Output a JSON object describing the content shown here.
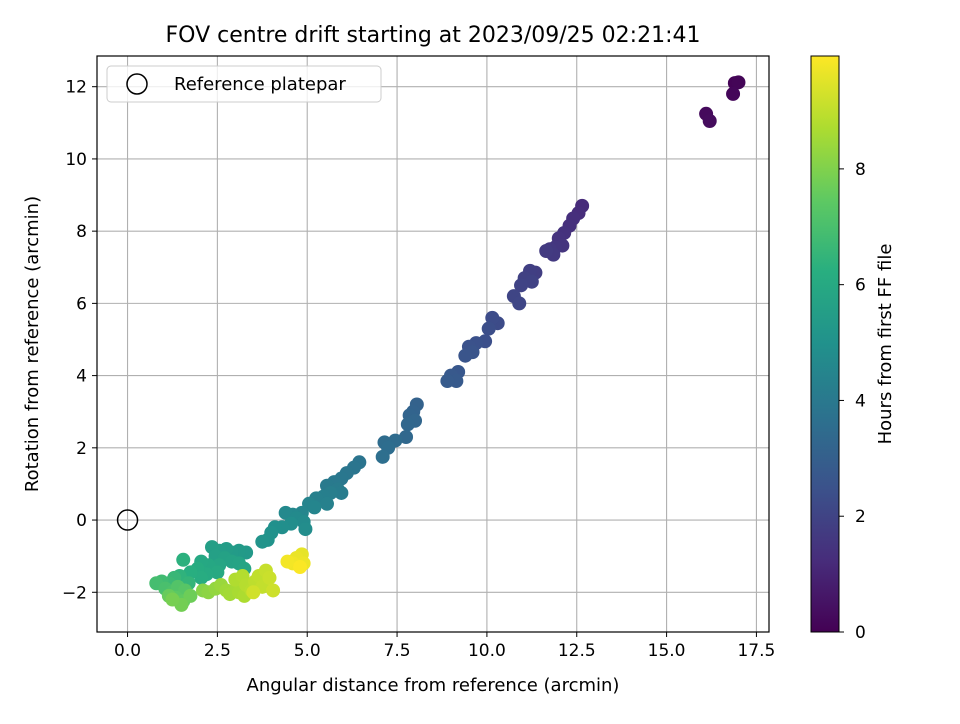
{
  "chart_data": {
    "type": "scatter",
    "title": "FOV centre drift starting at 2023/09/25 02:21:41",
    "xlabel": "Angular distance from reference (arcmin)",
    "ylabel": "Rotation from reference (arcmin)",
    "xlim": [
      -0.85,
      17.85
    ],
    "ylim": [
      -3.1,
      12.85
    ],
    "xticks": [
      0.0,
      2.5,
      5.0,
      7.5,
      10.0,
      12.5,
      15.0,
      17.5
    ],
    "xtick_labels": [
      "0.0",
      "2.5",
      "5.0",
      "7.5",
      "10.0",
      "12.5",
      "15.0",
      "17.5"
    ],
    "yticks": [
      -2,
      0,
      2,
      4,
      6,
      8,
      10,
      12
    ],
    "ytick_labels": [
      "−2",
      "0",
      "2",
      "4",
      "6",
      "8",
      "10",
      "12"
    ],
    "grid": true,
    "legend": {
      "position": "top-left",
      "entries": [
        "Reference platepar"
      ]
    },
    "reference_point": {
      "x": 0.0,
      "y": 0.0
    },
    "colorbar": {
      "label": "Hours from first FF file",
      "range": [
        0,
        9.95
      ],
      "ticks": [
        0,
        2,
        4,
        6,
        8
      ],
      "tick_labels": [
        "0",
        "2",
        "4",
        "6",
        "8"
      ],
      "colormap": "viridis"
    },
    "points": [
      {
        "x": 16.9,
        "y": 12.1,
        "h": 0.05
      },
      {
        "x": 17.0,
        "y": 12.12,
        "h": 0.1
      },
      {
        "x": 16.85,
        "y": 11.8,
        "h": 0.15
      },
      {
        "x": 16.1,
        "y": 11.25,
        "h": 0.25
      },
      {
        "x": 16.2,
        "y": 11.05,
        "h": 0.3
      },
      {
        "x": 12.65,
        "y": 8.7,
        "h": 1.2
      },
      {
        "x": 12.55,
        "y": 8.5,
        "h": 1.25
      },
      {
        "x": 12.4,
        "y": 8.35,
        "h": 1.3
      },
      {
        "x": 12.3,
        "y": 8.15,
        "h": 1.35
      },
      {
        "x": 12.15,
        "y": 7.95,
        "h": 1.4
      },
      {
        "x": 12.0,
        "y": 7.8,
        "h": 1.45
      },
      {
        "x": 12.1,
        "y": 7.6,
        "h": 1.5
      },
      {
        "x": 11.9,
        "y": 7.55,
        "h": 1.55
      },
      {
        "x": 11.75,
        "y": 7.5,
        "h": 1.6
      },
      {
        "x": 11.85,
        "y": 7.35,
        "h": 1.65
      },
      {
        "x": 11.65,
        "y": 7.45,
        "h": 1.7
      },
      {
        "x": 11.35,
        "y": 6.85,
        "h": 1.8
      },
      {
        "x": 11.2,
        "y": 6.9,
        "h": 1.85
      },
      {
        "x": 11.05,
        "y": 6.7,
        "h": 1.9
      },
      {
        "x": 11.25,
        "y": 6.6,
        "h": 1.95
      },
      {
        "x": 10.95,
        "y": 6.5,
        "h": 2.0
      },
      {
        "x": 10.75,
        "y": 6.2,
        "h": 2.05
      },
      {
        "x": 10.9,
        "y": 6.0,
        "h": 2.1
      },
      {
        "x": 10.3,
        "y": 5.45,
        "h": 2.25
      },
      {
        "x": 10.15,
        "y": 5.6,
        "h": 2.3
      },
      {
        "x": 10.05,
        "y": 5.3,
        "h": 2.35
      },
      {
        "x": 9.95,
        "y": 4.95,
        "h": 2.4
      },
      {
        "x": 9.7,
        "y": 4.9,
        "h": 2.45
      },
      {
        "x": 9.5,
        "y": 4.8,
        "h": 2.5
      },
      {
        "x": 9.6,
        "y": 4.65,
        "h": 2.55
      },
      {
        "x": 9.4,
        "y": 4.55,
        "h": 2.6
      },
      {
        "x": 9.2,
        "y": 4.1,
        "h": 2.7
      },
      {
        "x": 9.0,
        "y": 4.0,
        "h": 2.75
      },
      {
        "x": 9.15,
        "y": 3.85,
        "h": 2.8
      },
      {
        "x": 8.9,
        "y": 3.85,
        "h": 2.85
      },
      {
        "x": 8.05,
        "y": 3.2,
        "h": 3.1
      },
      {
        "x": 7.95,
        "y": 3.0,
        "h": 3.15
      },
      {
        "x": 7.85,
        "y": 2.9,
        "h": 3.2
      },
      {
        "x": 8.0,
        "y": 2.75,
        "h": 3.25
      },
      {
        "x": 7.8,
        "y": 2.65,
        "h": 3.3
      },
      {
        "x": 7.75,
        "y": 2.3,
        "h": 3.35
      },
      {
        "x": 7.45,
        "y": 2.2,
        "h": 3.45
      },
      {
        "x": 7.15,
        "y": 2.15,
        "h": 3.5
      },
      {
        "x": 7.25,
        "y": 2.0,
        "h": 3.55
      },
      {
        "x": 7.1,
        "y": 1.75,
        "h": 3.6
      },
      {
        "x": 6.45,
        "y": 1.6,
        "h": 3.8
      },
      {
        "x": 6.3,
        "y": 1.45,
        "h": 3.85
      },
      {
        "x": 6.1,
        "y": 1.3,
        "h": 3.9
      },
      {
        "x": 5.95,
        "y": 1.15,
        "h": 3.95
      },
      {
        "x": 5.75,
        "y": 1.05,
        "h": 4.0
      },
      {
        "x": 5.55,
        "y": 0.95,
        "h": 4.05
      },
      {
        "x": 5.85,
        "y": 0.85,
        "h": 4.1
      },
      {
        "x": 5.95,
        "y": 0.75,
        "h": 4.15
      },
      {
        "x": 5.65,
        "y": 0.75,
        "h": 4.2
      },
      {
        "x": 5.45,
        "y": 0.65,
        "h": 4.25
      },
      {
        "x": 5.25,
        "y": 0.6,
        "h": 4.3
      },
      {
        "x": 5.55,
        "y": 0.45,
        "h": 4.35
      },
      {
        "x": 5.05,
        "y": 0.45,
        "h": 4.45
      },
      {
        "x": 5.2,
        "y": 0.35,
        "h": 4.5
      },
      {
        "x": 4.85,
        "y": 0.2,
        "h": 4.55
      },
      {
        "x": 4.6,
        "y": 0.15,
        "h": 4.6
      },
      {
        "x": 4.4,
        "y": 0.2,
        "h": 4.65
      },
      {
        "x": 4.7,
        "y": 0.05,
        "h": 4.7
      },
      {
        "x": 4.9,
        "y": -0.05,
        "h": 4.75
      },
      {
        "x": 4.95,
        "y": -0.25,
        "h": 4.8
      },
      {
        "x": 4.55,
        "y": -0.1,
        "h": 4.85
      },
      {
        "x": 4.3,
        "y": -0.2,
        "h": 4.9
      },
      {
        "x": 4.1,
        "y": -0.2,
        "h": 4.95
      },
      {
        "x": 4.0,
        "y": -0.35,
        "h": 5.0
      },
      {
        "x": 3.9,
        "y": -0.55,
        "h": 5.05
      },
      {
        "x": 3.75,
        "y": -0.6,
        "h": 5.1
      },
      {
        "x": 3.3,
        "y": -0.9,
        "h": 5.3
      },
      {
        "x": 3.1,
        "y": -0.85,
        "h": 5.35
      },
      {
        "x": 2.9,
        "y": -0.9,
        "h": 5.4
      },
      {
        "x": 2.75,
        "y": -0.8,
        "h": 5.45
      },
      {
        "x": 2.55,
        "y": -0.85,
        "h": 5.5
      },
      {
        "x": 2.35,
        "y": -0.75,
        "h": 5.55
      },
      {
        "x": 2.45,
        "y": -1.0,
        "h": 5.6
      },
      {
        "x": 2.7,
        "y": -1.05,
        "h": 5.65
      },
      {
        "x": 2.9,
        "y": -1.15,
        "h": 5.7
      },
      {
        "x": 3.1,
        "y": -1.2,
        "h": 5.75
      },
      {
        "x": 3.25,
        "y": -1.35,
        "h": 5.8
      },
      {
        "x": 2.55,
        "y": -1.25,
        "h": 5.85
      },
      {
        "x": 2.25,
        "y": -1.25,
        "h": 5.9
      },
      {
        "x": 2.05,
        "y": -1.15,
        "h": 5.95
      },
      {
        "x": 2.5,
        "y": -1.45,
        "h": 6.0
      },
      {
        "x": 2.2,
        "y": -1.5,
        "h": 6.05
      },
      {
        "x": 1.95,
        "y": -1.35,
        "h": 6.1
      },
      {
        "x": 2.05,
        "y": -1.6,
        "h": 6.15
      },
      {
        "x": 1.75,
        "y": -1.45,
        "h": 6.2
      },
      {
        "x": 1.55,
        "y": -1.1,
        "h": 6.3
      },
      {
        "x": 1.45,
        "y": -1.55,
        "h": 6.4
      },
      {
        "x": 1.7,
        "y": -1.75,
        "h": 6.5
      },
      {
        "x": 1.3,
        "y": -1.6,
        "h": 6.6
      },
      {
        "x": 1.15,
        "y": -1.75,
        "h": 6.7
      },
      {
        "x": 0.95,
        "y": -1.7,
        "h": 6.8
      },
      {
        "x": 0.8,
        "y": -1.75,
        "h": 6.9
      },
      {
        "x": 1.05,
        "y": -1.9,
        "h": 7.0
      },
      {
        "x": 1.25,
        "y": -2.0,
        "h": 7.1
      },
      {
        "x": 1.4,
        "y": -1.85,
        "h": 7.2
      },
      {
        "x": 1.6,
        "y": -1.95,
        "h": 7.3
      },
      {
        "x": 1.35,
        "y": -2.15,
        "h": 7.4
      },
      {
        "x": 1.55,
        "y": -2.25,
        "h": 7.5
      },
      {
        "x": 1.15,
        "y": -2.1,
        "h": 7.6
      },
      {
        "x": 1.75,
        "y": -2.1,
        "h": 7.7
      },
      {
        "x": 1.5,
        "y": -2.35,
        "h": 7.8
      },
      {
        "x": 1.25,
        "y": -2.2,
        "h": 7.85
      },
      {
        "x": 2.1,
        "y": -1.95,
        "h": 8.1
      },
      {
        "x": 2.25,
        "y": -2.0,
        "h": 8.2
      },
      {
        "x": 2.45,
        "y": -1.9,
        "h": 8.3
      },
      {
        "x": 2.6,
        "y": -1.8,
        "h": 8.4
      },
      {
        "x": 2.75,
        "y": -1.95,
        "h": 8.5
      },
      {
        "x": 2.85,
        "y": -2.05,
        "h": 8.55
      },
      {
        "x": 3.05,
        "y": -1.85,
        "h": 8.6
      },
      {
        "x": 3.1,
        "y": -2.0,
        "h": 8.65
      },
      {
        "x": 3.25,
        "y": -2.1,
        "h": 8.7
      },
      {
        "x": 3.0,
        "y": -1.65,
        "h": 8.75
      },
      {
        "x": 3.2,
        "y": -1.55,
        "h": 8.8
      },
      {
        "x": 3.3,
        "y": -1.8,
        "h": 8.85
      },
      {
        "x": 3.45,
        "y": -1.95,
        "h": 8.9
      },
      {
        "x": 3.55,
        "y": -1.7,
        "h": 8.95
      },
      {
        "x": 3.65,
        "y": -1.55,
        "h": 9.0
      },
      {
        "x": 3.75,
        "y": -1.85,
        "h": 9.05
      },
      {
        "x": 3.85,
        "y": -1.4,
        "h": 9.1
      },
      {
        "x": 3.95,
        "y": -1.6,
        "h": 9.15
      },
      {
        "x": 4.05,
        "y": -1.95,
        "h": 9.2
      },
      {
        "x": 3.5,
        "y": -2.0,
        "h": 9.25
      },
      {
        "x": 4.85,
        "y": -0.95,
        "h": 9.6
      },
      {
        "x": 4.7,
        "y": -1.05,
        "h": 9.65
      },
      {
        "x": 4.9,
        "y": -1.2,
        "h": 9.7
      },
      {
        "x": 4.6,
        "y": -1.2,
        "h": 9.75
      },
      {
        "x": 4.45,
        "y": -1.15,
        "h": 9.8
      },
      {
        "x": 4.8,
        "y": -1.3,
        "h": 9.9
      }
    ]
  }
}
